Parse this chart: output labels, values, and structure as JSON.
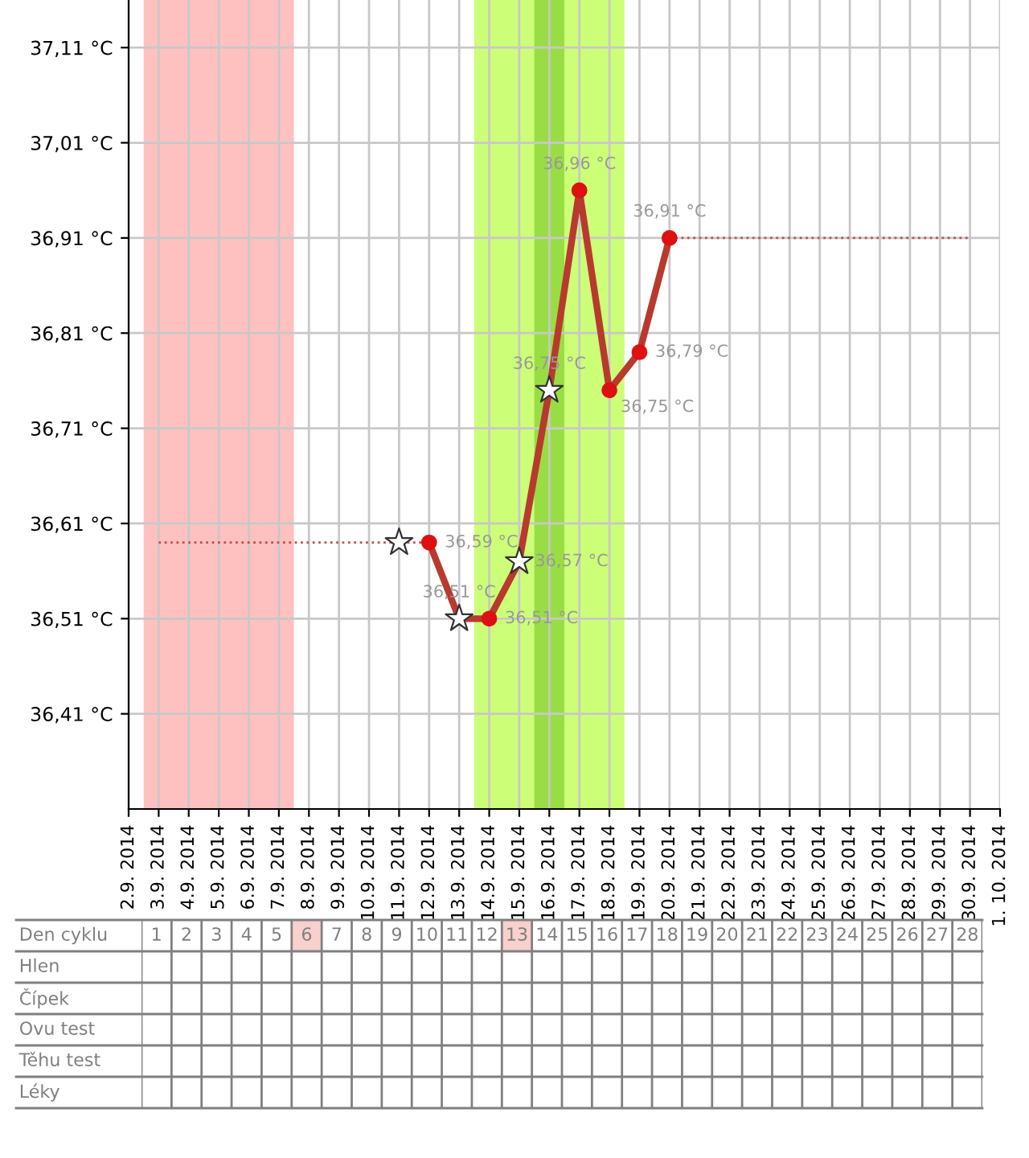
{
  "chart_data": [
    {
      "type": "line",
      "xlim": [
        "2014-09-02",
        "2014-10-01"
      ],
      "xticks": [
        {
          "value": "2014-09-02",
          "label": "2.9. 2014"
        },
        {
          "value": "2014-09-03",
          "label": "3.9. 2014"
        },
        {
          "value": "2014-09-04",
          "label": "4.9. 2014"
        },
        {
          "value": "2014-09-05",
          "label": "5.9. 2014"
        },
        {
          "value": "2014-09-06",
          "label": "6.9. 2014"
        },
        {
          "value": "2014-09-07",
          "label": "7.9. 2014"
        },
        {
          "value": "2014-09-08",
          "label": "8.9. 2014"
        },
        {
          "value": "2014-09-09",
          "label": "9.9. 2014"
        },
        {
          "value": "2014-09-10",
          "label": "10.9. 2014"
        },
        {
          "value": "2014-09-11",
          "label": "11.9. 2014"
        },
        {
          "value": "2014-09-12",
          "label": "12.9. 2014"
        },
        {
          "value": "2014-09-13",
          "label": "13.9. 2014"
        },
        {
          "value": "2014-09-14",
          "label": "14.9. 2014"
        },
        {
          "value": "2014-09-15",
          "label": "15.9. 2014"
        },
        {
          "value": "2014-09-16",
          "label": "16.9. 2014"
        },
        {
          "value": "2014-09-17",
          "label": "17.9. 2014"
        },
        {
          "value": "2014-09-18",
          "label": "18.9. 2014"
        },
        {
          "value": "2014-09-19",
          "label": "19.9. 2014"
        },
        {
          "value": "2014-09-20",
          "label": "20.9. 2014"
        },
        {
          "value": "2014-09-21",
          "label": "21.9. 2014"
        },
        {
          "value": "2014-09-22",
          "label": "22.9. 2014"
        },
        {
          "value": "2014-09-23",
          "label": "23.9. 2014"
        },
        {
          "value": "2014-09-24",
          "label": "24.9. 2014"
        },
        {
          "value": "2014-09-25",
          "label": "25.9. 2014"
        },
        {
          "value": "2014-09-26",
          "label": "26.9. 2014"
        },
        {
          "value": "2014-09-27",
          "label": "27.9. 2014"
        },
        {
          "value": "2014-09-28",
          "label": "28.9. 2014"
        },
        {
          "value": "2014-09-29",
          "label": "29.9. 2014"
        },
        {
          "value": "2014-09-30",
          "label": "30.9. 2014"
        },
        {
          "value": "2014-10-01",
          "label": "1. 10. 2014"
        }
      ],
      "ylim": [
        36.31,
        37.16
      ],
      "yticks": [
        {
          "value": 36.41,
          "label": "36,41 °C"
        },
        {
          "value": 36.51,
          "label": "36,51 °C"
        },
        {
          "value": 36.61,
          "label": "36,61 °C"
        },
        {
          "value": 36.71,
          "label": "36,71 °C"
        },
        {
          "value": 36.81,
          "label": "36,81 °C"
        },
        {
          "value": 36.91,
          "label": "36,91 °C"
        },
        {
          "value": 37.01,
          "label": "37,01 °C"
        },
        {
          "value": 37.11,
          "label": "37,11 °C"
        }
      ],
      "grid": true,
      "bands": [
        {
          "axis": "x",
          "from": "2014-09-02T12:00",
          "to": "2014-09-07T12:00",
          "color": "#ffc0c0"
        },
        {
          "axis": "x",
          "from": "2014-09-13T12:00",
          "to": "2014-09-18T12:00",
          "color": "#ccff77"
        },
        {
          "axis": "x",
          "from": "2014-09-15T12:00",
          "to": "2014-09-16T12:00",
          "color": "#99dd44"
        }
      ],
      "series": [
        {
          "type": "line",
          "x": [
            "2014-09-03",
            "2014-09-12"
          ],
          "values": [
            36.59,
            36.59
          ],
          "color": "#c0504d",
          "line_style": "dotted",
          "marker": "none"
        },
        {
          "type": "line",
          "x": [
            "2014-09-20",
            "2014-09-30"
          ],
          "values": [
            36.91,
            36.91
          ],
          "color": "#c0504d",
          "line_style": "dotted",
          "marker": "none"
        },
        {
          "type": "line",
          "x": [
            "2014-09-12",
            "2014-09-13",
            "2014-09-14",
            "2014-09-15",
            "2014-09-16",
            "2014-09-17",
            "2014-09-18",
            "2014-09-19",
            "2014-09-20"
          ],
          "values": [
            36.59,
            36.51,
            36.51,
            36.57,
            36.75,
            36.96,
            36.75,
            36.79,
            36.91
          ],
          "color": "#b83a2e",
          "line_style": "solid",
          "marker": "none"
        },
        {
          "type": "scatter",
          "x": [
            "2014-09-12",
            "2014-09-14",
            "2014-09-17",
            "2014-09-18",
            "2014-09-19",
            "2014-09-20"
          ],
          "values": [
            36.59,
            36.51,
            36.96,
            36.75,
            36.79,
            36.91
          ],
          "color": "#dd1111",
          "marker": "circle",
          "value_labels": [
            "36,59 °C",
            "36,51 °C",
            "36,96 °C",
            "36,75 °C",
            "36,79 °C",
            "36,91 °C"
          ]
        },
        {
          "type": "scatter",
          "x": [
            "2014-09-11",
            "2014-09-13",
            "2014-09-15",
            "2014-09-16"
          ],
          "values": [
            36.59,
            36.51,
            36.57,
            36.75
          ],
          "color": "#ffffff",
          "marker": "star",
          "value_labels": [
            null,
            "36,51 °C",
            "36,57 °C",
            "36,75 °C"
          ]
        }
      ]
    },
    {
      "type": "heatmap",
      "xlabel": "Den cyklu",
      "categories": [
        "1",
        "2",
        "3",
        "4",
        "5",
        "6",
        "7",
        "8",
        "9",
        "10",
        "11",
        "12",
        "13",
        "14",
        "15",
        "16",
        "17",
        "18",
        "19",
        "20",
        "21",
        "22",
        "23",
        "24",
        "25",
        "26",
        "27",
        "28"
      ],
      "y_categories": [
        "Hlen",
        "Čípek",
        "Ovu test",
        "Těhu test",
        "Léky"
      ],
      "cells": [
        [
          null,
          null,
          null,
          null,
          null,
          null,
          null,
          null,
          null,
          null,
          null,
          null,
          null,
          null,
          null,
          null,
          null,
          null,
          null,
          null,
          null,
          null,
          null,
          null,
          null,
          null,
          null,
          null
        ],
        [
          null,
          null,
          null,
          null,
          null,
          null,
          null,
          null,
          null,
          null,
          null,
          null,
          null,
          null,
          null,
          null,
          null,
          null,
          null,
          null,
          null,
          null,
          null,
          null,
          null,
          null,
          null,
          null
        ],
        [
          null,
          null,
          null,
          null,
          null,
          null,
          null,
          null,
          null,
          null,
          null,
          null,
          null,
          null,
          null,
          null,
          null,
          null,
          null,
          null,
          null,
          null,
          null,
          null,
          null,
          null,
          null,
          null
        ],
        [
          null,
          null,
          null,
          null,
          null,
          null,
          null,
          null,
          null,
          null,
          null,
          null,
          null,
          null,
          null,
          null,
          null,
          null,
          null,
          null,
          null,
          null,
          null,
          null,
          null,
          null,
          null,
          null
        ],
        [
          null,
          null,
          null,
          null,
          null,
          null,
          null,
          null,
          null,
          null,
          null,
          null,
          null,
          null,
          null,
          null,
          null,
          null,
          null,
          null,
          null,
          null,
          null,
          null,
          null,
          null,
          null,
          null
        ]
      ],
      "bands": [
        {
          "axis": "x",
          "from": "6",
          "to": "6",
          "color": "#f8d0cc"
        },
        {
          "axis": "x",
          "from": "13",
          "to": "13",
          "color": "#f8d0cc"
        }
      ]
    }
  ]
}
